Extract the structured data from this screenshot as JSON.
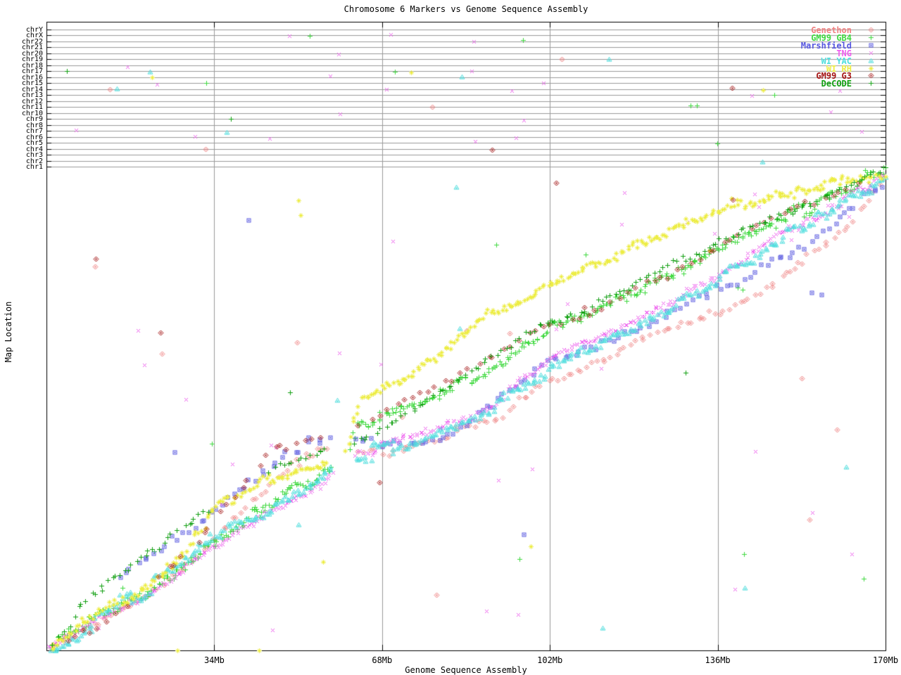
{
  "title": "Chromosome 6 Markers vs Genome Sequence Assembly",
  "axes": {
    "x_label": "Genome Sequence Assembly",
    "y_label": "Map Location"
  },
  "chart_data": {
    "type": "scatter",
    "title": "Chromosome 6 Markers vs Genome Sequence Assembly",
    "xlabel": "Genome Sequence Assembly",
    "ylabel": "Map Location",
    "x_unit": "Mb",
    "xlim": [
      0,
      170
    ],
    "x_ticks": [
      {
        "value": 34,
        "label": "34Mb"
      },
      {
        "value": 68,
        "label": "68Mb"
      },
      {
        "value": 102,
        "label": "102Mb"
      },
      {
        "value": 136,
        "label": "136Mb"
      },
      {
        "value": 170,
        "label": "170Mb"
      }
    ],
    "grid": true,
    "legend_position": "top-right",
    "chromosome_rows": [
      "chrY",
      "chrX",
      "chr22",
      "chr21",
      "chr20",
      "chr19",
      "chr18",
      "chr17",
      "chr16",
      "chr15",
      "chr14",
      "chr13",
      "chr12",
      "chr11",
      "chr10",
      "chr9",
      "chr8",
      "chr7",
      "chr6",
      "chr5",
      "chr4",
      "chr3",
      "chr2",
      "chr1"
    ],
    "colors": {
      "grid": "#9a9a9a",
      "border": "#000000"
    },
    "random_seed": 20,
    "series": [
      {
        "name": "Genethon",
        "color": "#f08080",
        "marker": "diamond",
        "density_per_mb": 1.0,
        "jitter": 0.006,
        "cluster_jitter": 0.008,
        "segments": [
          [
            [
              0.5,
              0.005
            ],
            [
              12,
              0.075
            ],
            [
              22,
              0.125
            ],
            [
              32,
              0.21
            ],
            [
              42,
              0.31
            ],
            [
              50,
              0.385
            ],
            [
              57.5,
              0.415
            ]
          ],
          [
            [
              63,
              0.4
            ],
            [
              75,
              0.432
            ],
            [
              90,
              0.48
            ],
            [
              100,
              0.545
            ],
            [
              112,
              0.6
            ],
            [
              125,
              0.655
            ],
            [
              135,
              0.695
            ],
            [
              145,
              0.74
            ],
            [
              155,
              0.82
            ],
            [
              162,
              0.87
            ],
            [
              170,
              0.975
            ]
          ]
        ],
        "extra_points": [],
        "outliers_main": 10,
        "outliers_rows": 4
      },
      {
        "name": "GM99 GB4",
        "color": "#3fd93f",
        "marker": "plus",
        "density_per_mb": 2.6,
        "jitter": 0.007,
        "cluster_jitter": 0.01,
        "segments": [
          [
            [
              0.5,
              0.008
            ],
            [
              10,
              0.07
            ],
            [
              20,
              0.12
            ],
            [
              30,
              0.196
            ],
            [
              40,
              0.262
            ],
            [
              50,
              0.33
            ],
            [
              58,
              0.385
            ]
          ],
          [
            [
              61,
              0.41
            ],
            [
              63,
              0.465
            ],
            [
              70,
              0.49
            ],
            [
              80,
              0.53
            ],
            [
              90,
              0.585
            ],
            [
              100,
              0.655
            ],
            [
              110,
              0.7
            ],
            [
              120,
              0.745
            ],
            [
              130,
              0.795
            ],
            [
              140,
              0.85
            ],
            [
              150,
              0.895
            ],
            [
              160,
              0.94
            ],
            [
              170,
              0.995
            ]
          ]
        ],
        "extra_points": [
          [
            140,
            0.75
          ],
          [
            141,
            0.745
          ]
        ],
        "outliers_main": 8,
        "outliers_rows": 8
      },
      {
        "name": "Marshfield",
        "color": "#5757e0",
        "marker": "square",
        "density_per_mb": 0.85,
        "jitter": 0.007,
        "cluster_jitter": 0.01,
        "segments": [
          [
            [
              14,
              0.155
            ],
            [
              25,
              0.225
            ],
            [
              35,
              0.3
            ],
            [
              45,
              0.38
            ],
            [
              53,
              0.43
            ],
            [
              58,
              0.435
            ]
          ],
          [
            [
              62,
              0.428
            ],
            [
              74,
              0.435
            ],
            [
              82,
              0.455
            ],
            [
              92,
              0.535
            ],
            [
              102,
              0.6
            ],
            [
              112,
              0.625
            ],
            [
              122,
              0.67
            ],
            [
              135,
              0.735
            ],
            [
              143,
              0.765
            ],
            [
              152,
              0.83
            ],
            [
              160,
              0.885
            ],
            [
              168,
              0.955
            ],
            [
              170,
              0.96
            ]
          ]
        ],
        "extra_points": [
          [
            26,
            0.41
          ],
          [
            155,
            0.74
          ],
          [
            157,
            0.735
          ]
        ],
        "outliers_main": 2,
        "outliers_rows": 0
      },
      {
        "name": "TNG",
        "color": "#ee5fee",
        "marker": "cross",
        "density_per_mb": 2.4,
        "jitter": 0.005,
        "cluster_jitter": 0.007,
        "segments": [
          [
            [
              0.5,
              0.003
            ],
            [
              10,
              0.062
            ],
            [
              20,
              0.112
            ],
            [
              30,
              0.19
            ],
            [
              40,
              0.25
            ],
            [
              50,
              0.315
            ],
            [
              58,
              0.36
            ]
          ],
          [
            [
              62.5,
              0.405
            ],
            [
              70,
              0.425
            ],
            [
              80,
              0.46
            ],
            [
              90,
              0.5
            ],
            [
              100,
              0.59
            ],
            [
              110,
              0.64
            ],
            [
              120,
              0.69
            ],
            [
              130,
              0.74
            ],
            [
              140,
              0.8
            ],
            [
              150,
              0.87
            ],
            [
              160,
              0.92
            ],
            [
              170,
              0.99
            ]
          ]
        ],
        "extra_points": [
          [
            45.5,
            0.425
          ],
          [
            46.5,
            0.42
          ]
        ],
        "outliers_main": 30,
        "outliers_rows": 22
      },
      {
        "name": "WI YAC",
        "color": "#4edede",
        "marker": "triangle",
        "density_per_mb": 2.2,
        "jitter": 0.006,
        "cluster_jitter": 0.012,
        "segments": [
          [
            [
              0.5,
              0.0
            ],
            [
              10,
              0.065
            ],
            [
              20,
              0.118
            ],
            [
              30,
              0.2
            ],
            [
              40,
              0.265
            ],
            [
              50,
              0.325
            ],
            [
              58,
              0.375
            ]
          ],
          [
            [
              62.5,
              0.395
            ],
            [
              70,
              0.415
            ],
            [
              80,
              0.45
            ],
            [
              90,
              0.49
            ],
            [
              100,
              0.575
            ],
            [
              110,
              0.625
            ],
            [
              120,
              0.68
            ],
            [
              130,
              0.73
            ],
            [
              140,
              0.795
            ],
            [
              150,
              0.86
            ],
            [
              160,
              0.915
            ],
            [
              170,
              0.985
            ]
          ]
        ],
        "extra_points": [
          [
            51,
            0.26
          ],
          [
            162,
            0.38
          ]
        ],
        "outliers_main": 6,
        "outliers_rows": 6
      },
      {
        "name": "WI RH",
        "color": "#eded45",
        "marker": "star",
        "density_per_mb": 2.2,
        "jitter": 0.006,
        "cluster_jitter": 0.008,
        "segments": [
          [
            [
              0.5,
              0.006
            ],
            [
              10,
              0.075
            ],
            [
              20,
              0.13
            ],
            [
              28,
              0.2
            ],
            [
              34,
              0.295
            ],
            [
              40,
              0.33
            ],
            [
              46,
              0.358
            ],
            [
              52,
              0.378
            ],
            [
              57,
              0.398
            ]
          ],
          [
            [
              60,
              0.42
            ],
            [
              62,
              0.47
            ],
            [
              64,
              0.52
            ],
            [
              70,
              0.55
            ],
            [
              78,
              0.6
            ],
            [
              85,
              0.655
            ],
            [
              90,
              0.705
            ],
            [
              96,
              0.72
            ],
            [
              102,
              0.76
            ],
            [
              108,
              0.785
            ],
            [
              114,
              0.81
            ],
            [
              120,
              0.845
            ],
            [
              128,
              0.875
            ],
            [
              135,
              0.905
            ],
            [
              145,
              0.935
            ],
            [
              155,
              0.955
            ],
            [
              163,
              0.968
            ],
            [
              170,
              0.99
            ]
          ]
        ],
        "extra_points": [
          [
            26.5,
            0.0
          ],
          [
            43,
            0.0
          ],
          [
            51,
            0.93
          ],
          [
            51.5,
            0.9
          ]
        ],
        "outliers_main": 3,
        "outliers_rows": 3
      },
      {
        "name": "GM99 G3",
        "color": "#a31212",
        "marker": "diamond",
        "density_per_mb": 0.6,
        "jitter": 0.004,
        "cluster_jitter": 0.012,
        "segments": [
          [
            [
              3,
              0.015
            ],
            [
              10,
              0.045
            ],
            [
              17,
              0.085
            ]
          ],
          [
            [
              22,
              0.13
            ],
            [
              27,
              0.18
            ],
            [
              31,
              0.21
            ],
            [
              34,
              0.26
            ],
            [
              40,
              0.33
            ],
            [
              45,
              0.4
            ],
            [
              50,
              0.43
            ],
            [
              56,
              0.445
            ]
          ],
          [
            [
              63,
              0.465
            ],
            [
              70,
              0.5
            ],
            [
              80,
              0.545
            ],
            [
              90,
              0.6
            ],
            [
              100,
              0.66
            ],
            [
              112,
              0.71
            ],
            [
              125,
              0.77
            ],
            [
              140,
              0.85
            ],
            [
              155,
              0.925
            ],
            [
              165,
              0.975
            ]
          ]
        ],
        "extra_points": [
          [
            10,
            0.81
          ],
          [
            109,
            0.71
          ]
        ],
        "outliers_main": 4,
        "outliers_rows": 2
      },
      {
        "name": "DeCODE",
        "color": "#11a011",
        "marker": "plus",
        "density_per_mb": 1.1,
        "jitter": 0.005,
        "cluster_jitter": 0.008,
        "segments": [
          [
            [
              1,
              0.01
            ],
            [
              5,
              0.05
            ],
            [
              7,
              0.1
            ],
            [
              12,
              0.138
            ],
            [
              18,
              0.19
            ],
            [
              24,
              0.232
            ],
            [
              28,
              0.26
            ],
            [
              33,
              0.288
            ]
          ],
          [
            [
              45,
              0.37
            ],
            [
              52,
              0.4
            ],
            [
              57,
              0.422
            ]
          ],
          [
            [
              62,
              0.425
            ],
            [
              66,
              0.45
            ],
            [
              80,
              0.535
            ],
            [
              100,
              0.67
            ],
            [
              120,
              0.76
            ],
            [
              140,
              0.865
            ],
            [
              155,
              0.925
            ],
            [
              170,
              0.998
            ]
          ]
        ],
        "extra_points": [],
        "outliers_main": 2,
        "outliers_rows": 2
      }
    ]
  }
}
